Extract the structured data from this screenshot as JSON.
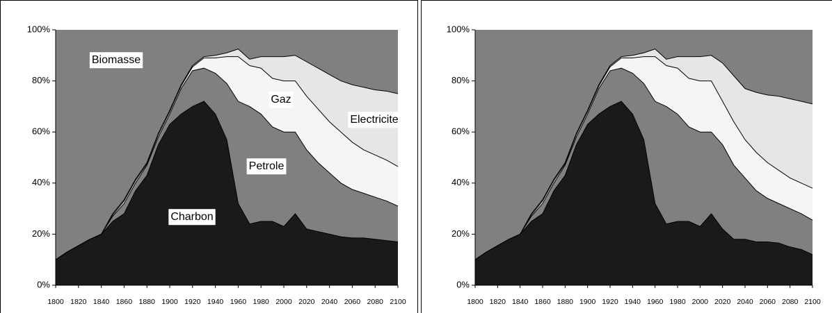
{
  "chart_data": [
    {
      "type": "stacked_area",
      "x": [
        1800,
        1810,
        1820,
        1830,
        1840,
        1850,
        1860,
        1870,
        1880,
        1890,
        1900,
        1910,
        1920,
        1930,
        1940,
        1950,
        1960,
        1970,
        1980,
        1990,
        2000,
        2010,
        2020,
        2030,
        2040,
        2050,
        2060,
        2070,
        2080,
        2090,
        2100
      ],
      "xlim": [
        1800,
        2100
      ],
      "xticks": [
        1800,
        1820,
        1840,
        1860,
        1880,
        1900,
        1920,
        1940,
        1960,
        1980,
        2000,
        2020,
        2040,
        2060,
        2080,
        2100
      ],
      "ylim": [
        0,
        100
      ],
      "yticks": [
        {
          "value": 0,
          "label": "0%"
        },
        {
          "value": 20,
          "label": "20%"
        },
        {
          "value": 40,
          "label": "40%"
        },
        {
          "value": 60,
          "label": "60%"
        },
        {
          "value": 80,
          "label": "80%"
        },
        {
          "value": 100,
          "label": "100%"
        }
      ],
      "series": [
        {
          "name": "Charbon",
          "color": "#1a1a1a",
          "values": [
            10,
            13,
            15.5,
            18,
            20,
            25,
            28,
            37,
            43,
            55,
            63,
            67,
            70,
            72,
            67,
            57,
            32,
            24,
            25,
            25,
            23,
            28,
            22,
            21,
            20,
            19,
            18.5,
            18.5,
            18,
            17.5,
            17
          ]
        },
        {
          "name": "Petrole",
          "color": "#808080",
          "values": [
            0,
            0,
            0,
            0,
            0,
            2,
            4,
            3,
            4,
            3,
            4,
            10,
            14,
            13,
            16,
            22,
            40,
            46,
            42,
            37,
            37,
            32,
            31,
            27,
            24,
            21,
            19,
            17.5,
            16.5,
            15.5,
            14
          ]
        },
        {
          "name": "Gaz",
          "color": "#f5f5f5",
          "values": [
            0,
            0,
            0,
            0,
            0,
            0.5,
            1,
            1,
            0.5,
            1,
            1,
            1,
            1.5,
            4,
            6,
            10.5,
            17.5,
            16,
            18,
            19,
            20,
            20,
            21,
            21,
            20,
            20,
            18.5,
            17,
            16.5,
            16,
            15.5
          ]
        },
        {
          "name": "Electricite",
          "color": "#e6e6e6",
          "values": [
            0,
            0,
            0,
            0,
            0,
            0.5,
            0.5,
            0.5,
            0.5,
            0.5,
            0.5,
            0.5,
            0.5,
            0.5,
            1,
            1.5,
            3,
            2.5,
            4.5,
            8.5,
            9.5,
            10,
            13.5,
            16,
            18.5,
            20,
            22.5,
            24.5,
            25.5,
            27,
            28.5
          ]
        },
        {
          "name": "Biomasse",
          "color": "#808080",
          "values": [
            90,
            87,
            84.5,
            82,
            80,
            72,
            66.5,
            58.5,
            52,
            40.5,
            31.5,
            21.5,
            14,
            10.5,
            10,
            9,
            7.5,
            11.5,
            10.5,
            10.5,
            10.5,
            10,
            12.5,
            15,
            17.5,
            20,
            21.5,
            22.5,
            23.5,
            24,
            25
          ]
        }
      ]
    },
    {
      "type": "stacked_area",
      "x": [
        1800,
        1810,
        1820,
        1830,
        1840,
        1850,
        1860,
        1870,
        1880,
        1890,
        1900,
        1910,
        1920,
        1930,
        1940,
        1950,
        1960,
        1970,
        1980,
        1990,
        2000,
        2010,
        2020,
        2030,
        2040,
        2050,
        2060,
        2070,
        2080,
        2090,
        2100
      ],
      "xlim": [
        1800,
        2100
      ],
      "xticks": [
        1800,
        1820,
        1840,
        1860,
        1880,
        1900,
        1920,
        1940,
        1960,
        1980,
        2000,
        2020,
        2040,
        2060,
        2080,
        2100
      ],
      "ylim": [
        0,
        100
      ],
      "yticks": [
        {
          "value": 0,
          "label": "0%"
        },
        {
          "value": 20,
          "label": "20%"
        },
        {
          "value": 40,
          "label": "40%"
        },
        {
          "value": 60,
          "label": "60%"
        },
        {
          "value": 80,
          "label": "80%"
        },
        {
          "value": 100,
          "label": "100%"
        }
      ],
      "series": [
        {
          "color": "#1a1a1a",
          "values": [
            10,
            13,
            15.5,
            18,
            20,
            25,
            28,
            37,
            43,
            55,
            63,
            67,
            70,
            72,
            67,
            57,
            32,
            24,
            25,
            25,
            23,
            28,
            22,
            18,
            18,
            17,
            17,
            16.5,
            15,
            14,
            12
          ]
        },
        {
          "color": "#808080",
          "values": [
            0,
            0,
            0,
            0,
            0,
            2,
            4,
            3,
            4,
            3,
            4,
            10,
            14,
            13,
            16,
            22,
            40,
            46,
            42,
            37,
            37,
            32,
            33,
            29,
            24,
            20,
            17,
            15.5,
            15,
            14,
            13.5
          ]
        },
        {
          "color": "#f5f5f5",
          "values": [
            0,
            0,
            0,
            0,
            0,
            0.5,
            1,
            1,
            0.5,
            1,
            1,
            1,
            1.5,
            4,
            6,
            10.5,
            17.5,
            16,
            18,
            19,
            20,
            20,
            17,
            17,
            15,
            15,
            14,
            13,
            12,
            12,
            12.5
          ]
        },
        {
          "color": "#e6e6e6",
          "values": [
            0,
            0,
            0,
            0,
            0,
            0.5,
            0.5,
            0.5,
            0.5,
            0.5,
            0.5,
            0.5,
            0.5,
            0.5,
            1,
            1.5,
            3,
            2.5,
            4.5,
            8.5,
            9.5,
            10,
            15,
            18,
            20,
            23.5,
            26.5,
            29,
            31,
            32,
            33
          ]
        },
        {
          "color": "#808080",
          "values": [
            90,
            87,
            84.5,
            82,
            80,
            72,
            66.5,
            58.5,
            52,
            40.5,
            31.5,
            21.5,
            14,
            10.5,
            10,
            9,
            7.5,
            11.5,
            10.5,
            10.5,
            10.5,
            10,
            13,
            18,
            23,
            24.5,
            25.5,
            26,
            27,
            28,
            29
          ]
        }
      ]
    }
  ]
}
